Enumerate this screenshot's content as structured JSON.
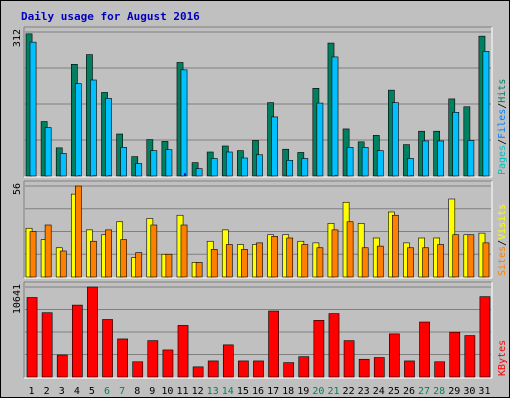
{
  "chart_data": {
    "type": "bar",
    "title": "Daily usage for August 2016",
    "categories": [
      "1",
      "2",
      "3",
      "4",
      "5",
      "6",
      "7",
      "8",
      "9",
      "10",
      "11",
      "12",
      "13",
      "14",
      "15",
      "16",
      "17",
      "18",
      "19",
      "20",
      "21",
      "22",
      "23",
      "24",
      "25",
      "26",
      "27",
      "28",
      "29",
      "30",
      "31"
    ],
    "weekend_days": [
      "6",
      "7",
      "13",
      "14",
      "20",
      "21",
      "27",
      "28"
    ],
    "panels": [
      {
        "name": "hits-files-pages",
        "scale_label": "312",
        "ymax": 312,
        "right_label": [
          "Pages",
          "/",
          "Files",
          "/",
          "Hits"
        ],
        "right_label_colors": [
          "#00c0c0",
          "#000000",
          "#0080ff",
          "#000000",
          "#008060"
        ],
        "series": [
          {
            "name": "Hits",
            "color": "#008060",
            "values": [
              308,
              118,
              61,
              242,
              263,
              181,
              91,
              42,
              79,
              75,
              246,
              29,
              52,
              65,
              55,
              77,
              159,
              58,
              51,
              190,
              288,
              102,
              74,
              88,
              186,
              68,
              97,
              97,
              167,
              150,
              303
            ]
          },
          {
            "name": "Files",
            "color": "#00c0ff",
            "values": [
              290,
              105,
              49,
              200,
              208,
              168,
              62,
              27,
              55,
              57,
              230,
              16,
              38,
              52,
              39,
              46,
              128,
              34,
              38,
              158,
              258,
              62,
              62,
              55,
              159,
              38,
              76,
              76,
              138,
              77,
              270
            ]
          },
          {
            "name": "Pages",
            "color": "#0000ff",
            "values": [
              0,
              0,
              0,
              2,
              2,
              2,
              0,
              0,
              0,
              0,
              6,
              0,
              0,
              0,
              0,
              0,
              0,
              0,
              0,
              0,
              2,
              0,
              0,
              0,
              0,
              2,
              0,
              0,
              0,
              0,
              0
            ]
          }
        ]
      },
      {
        "name": "visits-sites",
        "scale_label": "56",
        "ymax": 56,
        "right_label": [
          "Sites",
          "/",
          "Visits"
        ],
        "right_label_colors": [
          "#ff8000",
          "#000000",
          "#ffff00"
        ],
        "series": [
          {
            "name": "Visits",
            "color": "#ffff00",
            "values": [
              30,
              23,
              18,
              51,
              29,
              26,
              34,
              12,
              36,
              14,
              38,
              9,
              22,
              29,
              20,
              20,
              26,
              26,
              22,
              21,
              33,
              46,
              33,
              24,
              40,
              21,
              24,
              24,
              48,
              26,
              27
            ]
          },
          {
            "name": "Sites",
            "color": "#ff8000",
            "values": [
              28,
              32,
              16,
              56,
              22,
              29,
              23,
              15,
              32,
              14,
              32,
              9,
              17,
              20,
              17,
              21,
              25,
              24,
              20,
              18,
              29,
              34,
              18,
              19,
              38,
              18,
              18,
              20,
              26,
              26,
              21
            ]
          }
        ]
      },
      {
        "name": "kbytes",
        "scale_label": "10641",
        "ymax": 10641,
        "right_label": [
          "KBytes"
        ],
        "right_label_colors": [
          "#ff0000"
        ],
        "series": [
          {
            "name": "KBytes",
            "color": "#ff0000",
            "values": [
              9400,
              7600,
              2600,
              8500,
              10641,
              6800,
              4500,
              1800,
              4300,
              3200,
              6100,
              1200,
              1900,
              3800,
              1900,
              1900,
              7800,
              1700,
              2400,
              6700,
              7500,
              4300,
              2100,
              2300,
              5100,
              1900,
              6500,
              1800,
              5300,
              4900,
              9500
            ]
          }
        ]
      }
    ]
  }
}
